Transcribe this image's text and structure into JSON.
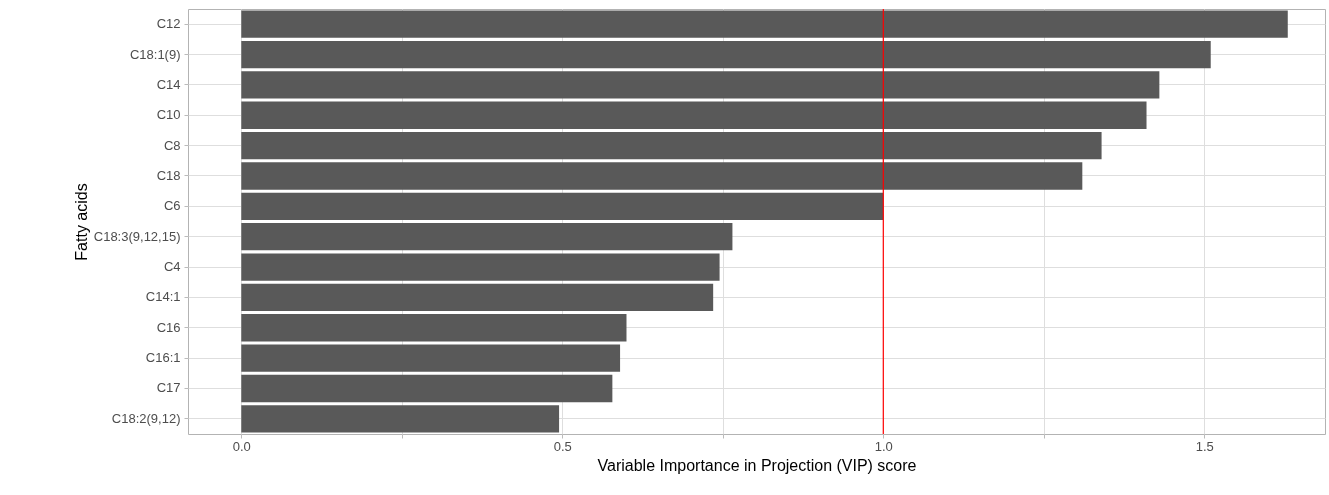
{
  "chart_data": {
    "type": "bar",
    "orientation": "horizontal",
    "xlabel": "Variable Importance in Projection (VIP) score",
    "ylabel": "Fatty acids",
    "categories": [
      "C12",
      "C18:1(9)",
      "C14",
      "C10",
      "C8",
      "C18",
      "C6",
      "C18:3(9,12,15)",
      "C4",
      "C14:1",
      "C16",
      "C16:1",
      "C17",
      "C18:2(9,12)"
    ],
    "values": [
      1.63,
      1.51,
      1.43,
      1.41,
      1.34,
      1.31,
      1.0,
      0.765,
      0.745,
      0.735,
      0.6,
      0.59,
      0.578,
      0.495
    ],
    "color": "#595959",
    "xlim": [
      -0.083,
      1.688
    ],
    "xticks": [
      {
        "value": 0,
        "label": "0.0"
      },
      {
        "value": 0.25,
        "label": null
      },
      0.5,
      {
        "value": 0.75,
        "label": null
      },
      {
        "value": 1,
        "label": "1.0"
      },
      {
        "value": 1.25,
        "label": null
      },
      1.5
    ],
    "grid": true,
    "ref_lines": [
      {
        "axis": "x",
        "value": 1,
        "color": "#ff0000"
      }
    ]
  }
}
